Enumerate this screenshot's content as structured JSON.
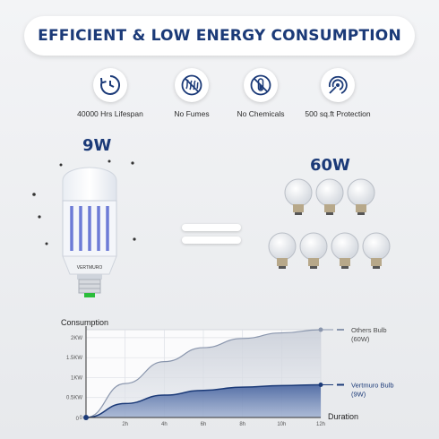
{
  "banner": {
    "title": "EFFICIENT & LOW ENERGY CONSUMPTION"
  },
  "features": [
    {
      "label": "40000 Hrs Lifespan",
      "icon": "clock-refresh-icon"
    },
    {
      "label": "No Fumes",
      "icon": "no-fumes-icon"
    },
    {
      "label": "No Chemicals",
      "icon": "no-chemicals-icon"
    },
    {
      "label": "500 sq.ft Protection",
      "icon": "protection-target-icon"
    }
  ],
  "comparison": {
    "left_watt": "9W",
    "right_watt": "60W",
    "bulb_brand": "VERTMURO"
  },
  "colors": {
    "accent": "#1b3a78",
    "others_curve": "#8a96ad",
    "vertmuro_curve": "#1b3a78"
  },
  "chart_data": {
    "type": "area",
    "title": "Consumption",
    "xlabel": "Duration",
    "ylabel": "Consumption",
    "x_ticks": [
      "0",
      "2h",
      "4h",
      "6h",
      "8h",
      "10h",
      "12h"
    ],
    "y_ticks": [
      "0",
      "0.5KW",
      "1KW",
      "1.5KW",
      "2KW"
    ],
    "xlim": [
      0,
      12
    ],
    "ylim": [
      0,
      2.2
    ],
    "grid": true,
    "series": [
      {
        "name": "Others Bulb",
        "name_line2": "(60W)",
        "x": [
          0,
          2,
          4,
          6,
          8,
          10,
          12
        ],
        "values": [
          0,
          0.85,
          1.4,
          1.75,
          1.98,
          2.12,
          2.2
        ]
      },
      {
        "name": "Vertmuro Bulb",
        "name_line2": "(9W)",
        "x": [
          0,
          2,
          4,
          6,
          8,
          10,
          12
        ],
        "values": [
          0,
          0.35,
          0.56,
          0.68,
          0.76,
          0.8,
          0.82
        ]
      }
    ]
  }
}
